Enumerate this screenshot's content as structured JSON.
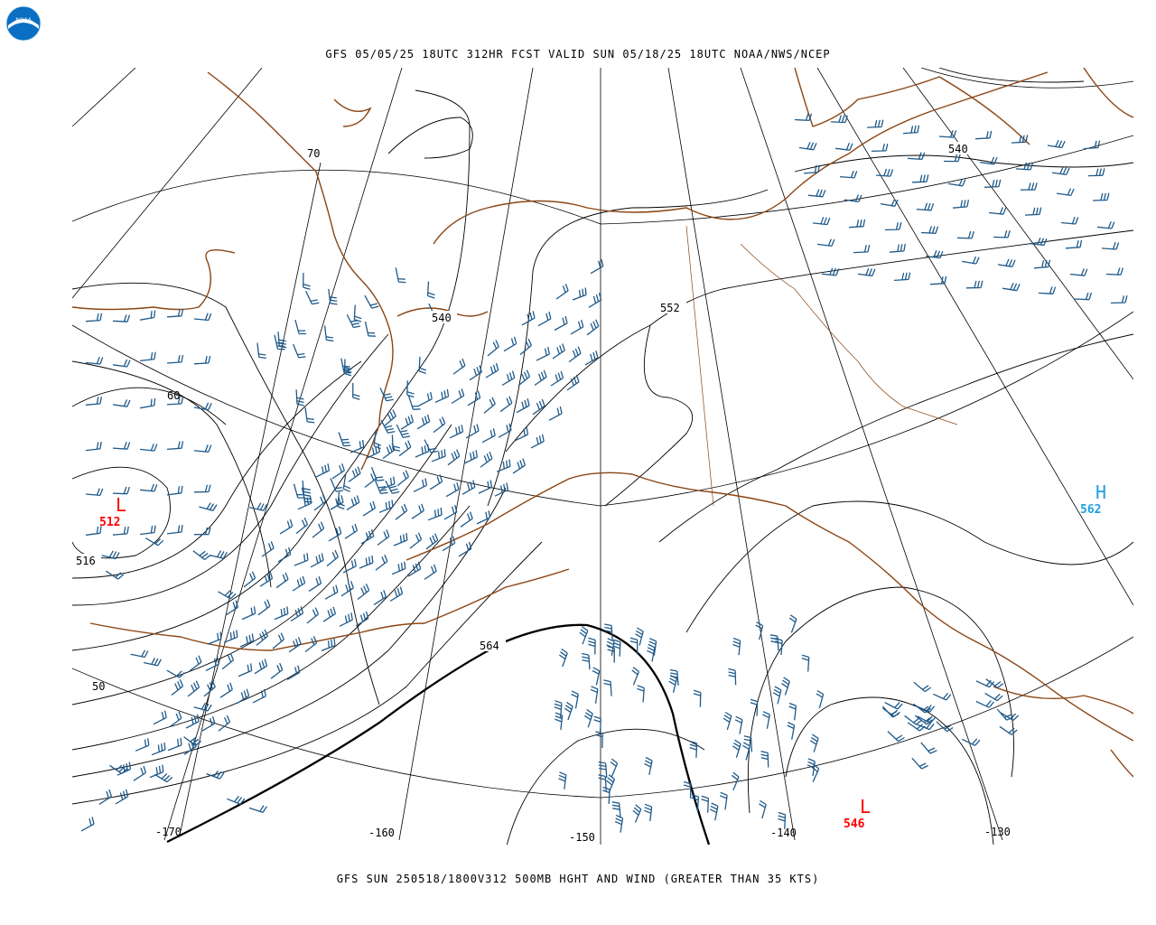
{
  "header": {
    "title": "GFS 05/05/25 18UTC 312HR FCST VALID SUN 05/18/25 18UTC NOAA/NWS/NCEP",
    "logo_text": "NOAA"
  },
  "footer": {
    "caption": "GFS SUN 250518/1800V312 500MB HGHT AND WIND (GREATER THAN 35 KTS)"
  },
  "colors": {
    "coastline": "#8B4513",
    "barb": "#1f5a8a",
    "contour": "#000000",
    "low": "#ff0000",
    "high": "#1ea0e0",
    "logo": "#0a6fc2"
  },
  "longitude_labels": [
    "-170",
    "-160",
    "-150",
    "-140",
    "-130"
  ],
  "latitude_labels": [
    "70",
    "60",
    "50"
  ],
  "height_contour_labels": [
    "540",
    "552",
    "516",
    "564",
    "540"
  ],
  "pressure_centers": [
    {
      "type": "L",
      "value": "512"
    },
    {
      "type": "L",
      "value": "546"
    },
    {
      "type": "H",
      "value": "562"
    }
  ]
}
